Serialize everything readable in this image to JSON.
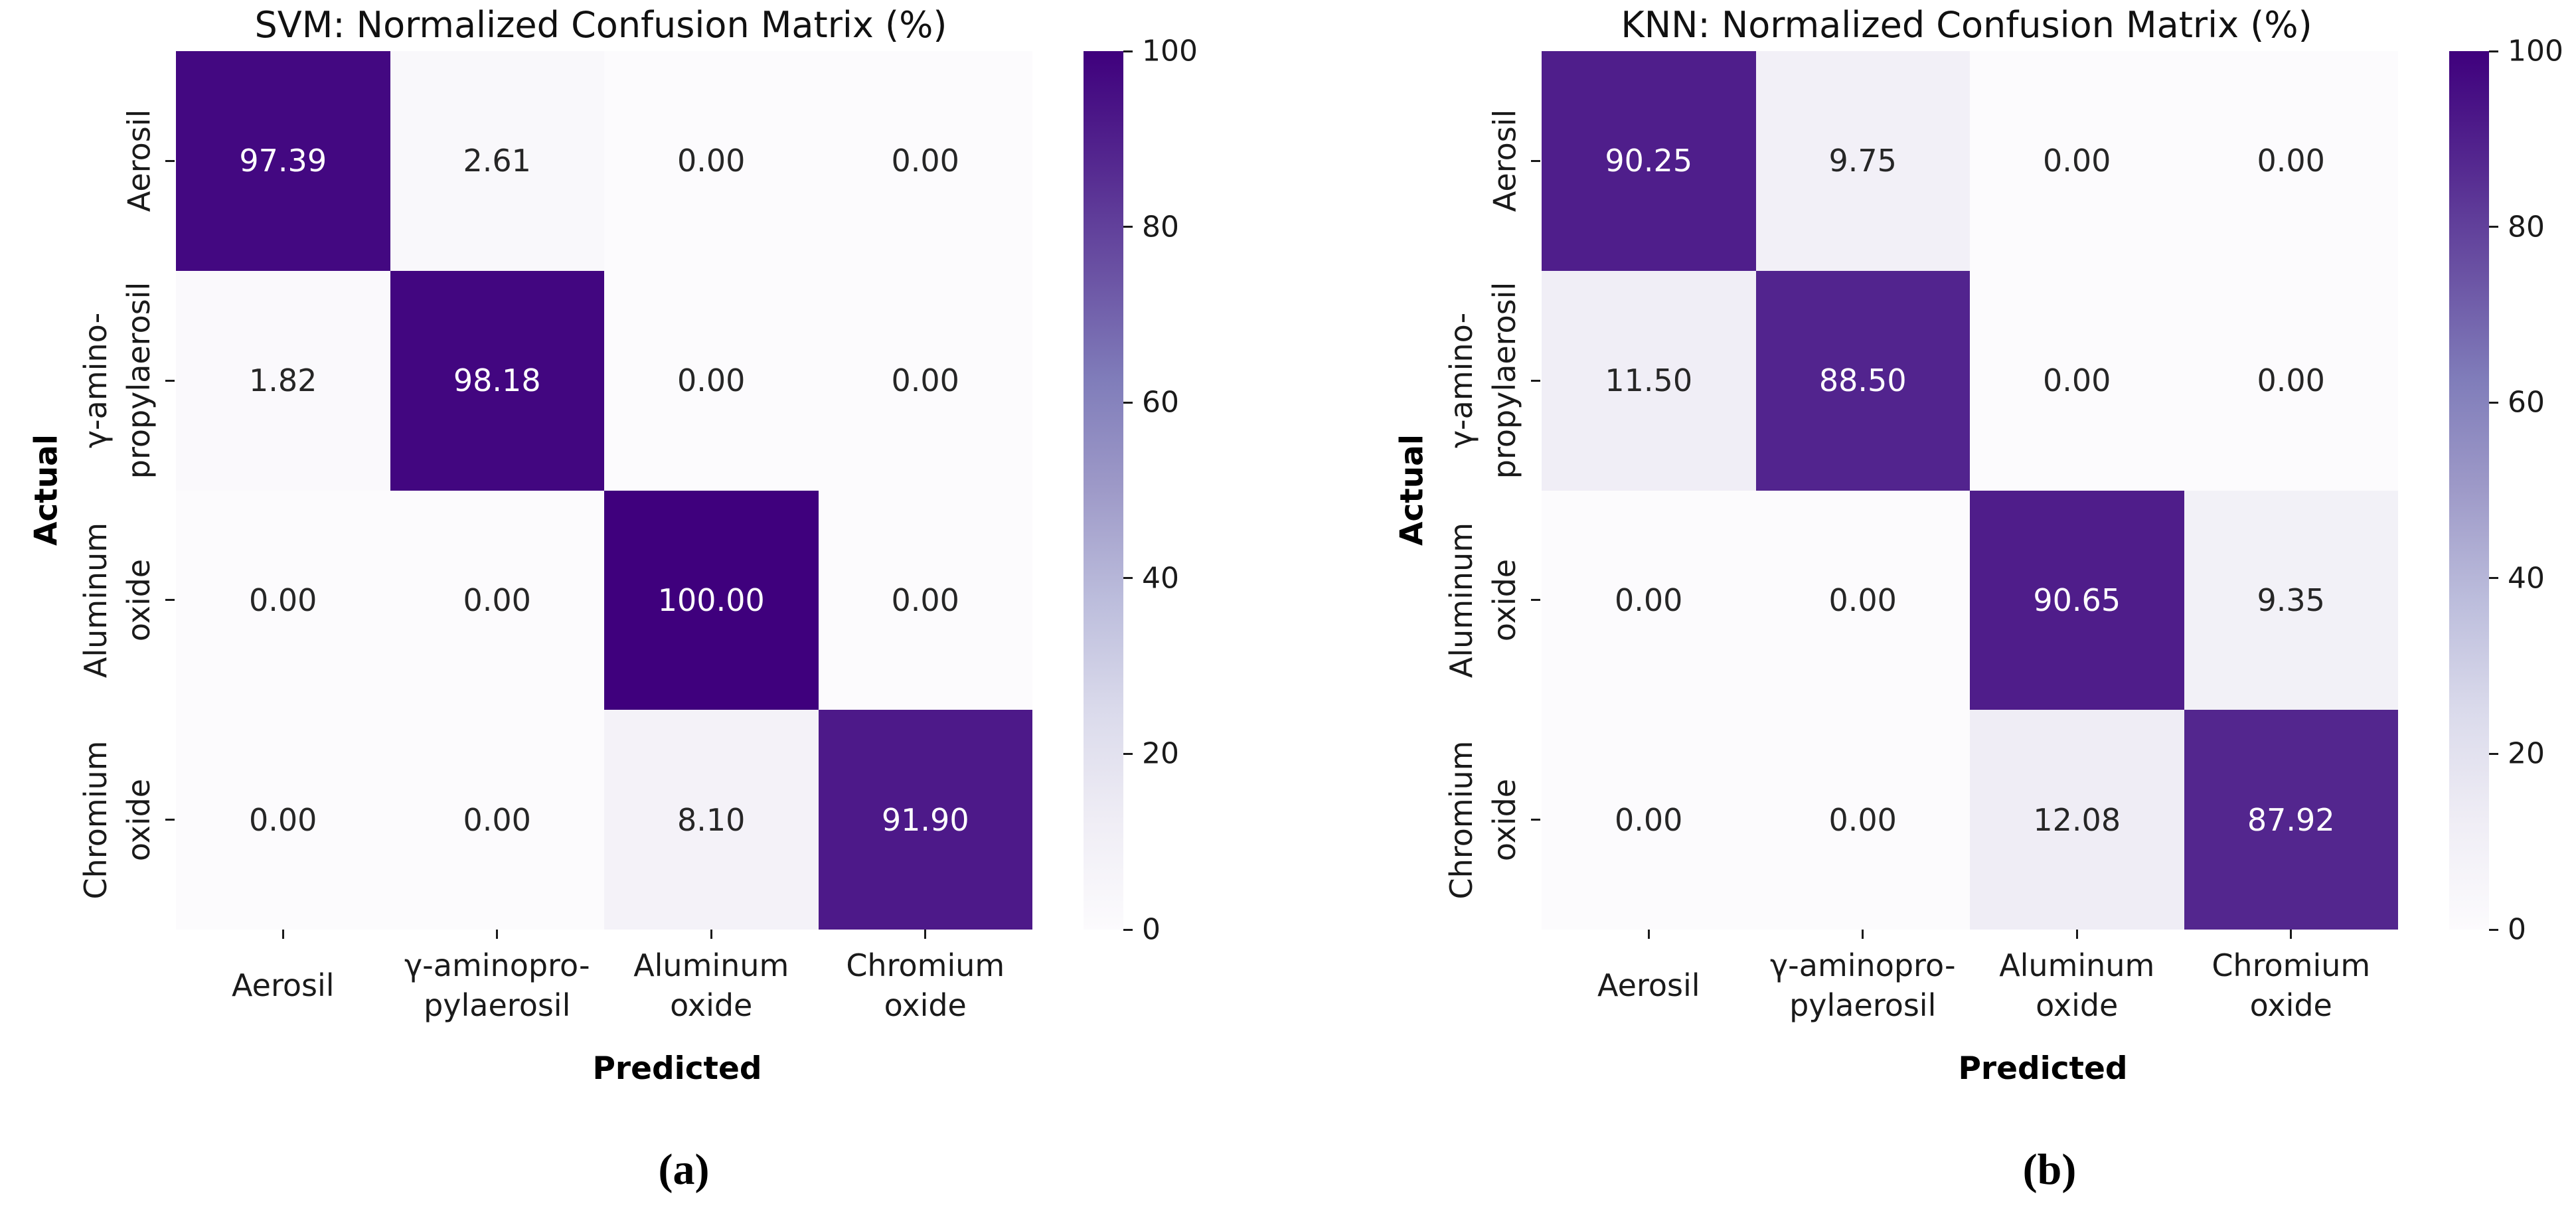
{
  "style": {
    "background": "#ffffff",
    "tick_color": "#1a1a1a",
    "annot_on_dark": "#ffffff",
    "annot_on_light": "#262626",
    "colormap_stops": [
      {
        "v": 0,
        "c": "#fcfbfd"
      },
      {
        "v": 12.5,
        "c": "#efedf5"
      },
      {
        "v": 25,
        "c": "#dadaeb"
      },
      {
        "v": 37.5,
        "c": "#bcbddc"
      },
      {
        "v": 50,
        "c": "#9e9ac8"
      },
      {
        "v": 62.5,
        "c": "#807dba"
      },
      {
        "v": 75,
        "c": "#6a51a3"
      },
      {
        "v": 87.5,
        "c": "#54278f"
      },
      {
        "v": 100,
        "c": "#3f007d"
      }
    ]
  },
  "axes": {
    "x_tick_lines": [
      [
        "Aerosil"
      ],
      [
        "γ-aminopro-",
        "pylaerosil"
      ],
      [
        "Aluminum",
        "oxide"
      ],
      [
        "Chromium",
        "oxide"
      ]
    ],
    "y_tick_lines": [
      [
        "Aerosil"
      ],
      [
        "γ-amino-",
        "propylaerosil"
      ],
      [
        "Aluminum",
        "oxide"
      ],
      [
        "Chromium",
        "oxide"
      ]
    ]
  },
  "colorbar": {
    "min": 0,
    "max": 100,
    "ticks": [
      100,
      80,
      60,
      40,
      20,
      0
    ]
  },
  "chart_data": [
    {
      "type": "heatmap",
      "title": "SVM: Normalized Confusion Matrix (%)",
      "xlabel": "Predicted",
      "ylabel": "Actual",
      "caption": "(a)",
      "x_categories": [
        "Aerosil",
        "γ-aminopropylaerosil",
        "Aluminum oxide",
        "Chromium oxide"
      ],
      "y_categories": [
        "Aerosil",
        "γ-aminopropylaerosil",
        "Aluminum oxide",
        "Chromium oxide"
      ],
      "values": [
        [
          97.39,
          2.61,
          0.0,
          0.0
        ],
        [
          1.82,
          98.18,
          0.0,
          0.0
        ],
        [
          0.0,
          0.0,
          100.0,
          0.0
        ],
        [
          0.0,
          0.0,
          8.1,
          91.9
        ]
      ],
      "vmin": 0,
      "vmax": 100,
      "colormap": "Purples",
      "legend_position": "right-colorbar",
      "grid": false
    },
    {
      "type": "heatmap",
      "title": "KNN: Normalized Confusion Matrix (%)",
      "xlabel": "Predicted",
      "ylabel": "Actual",
      "caption": "(b)",
      "x_categories": [
        "Aerosil",
        "γ-aminopropylaerosil",
        "Aluminum oxide",
        "Chromium oxide"
      ],
      "y_categories": [
        "Aerosil",
        "γ-aminopropylaerosil",
        "Aluminum oxide",
        "Chromium oxide"
      ],
      "values": [
        [
          90.25,
          9.75,
          0.0,
          0.0
        ],
        [
          11.5,
          88.5,
          0.0,
          0.0
        ],
        [
          0.0,
          0.0,
          90.65,
          9.35
        ],
        [
          0.0,
          0.0,
          12.08,
          87.92
        ]
      ],
      "vmin": 0,
      "vmax": 100,
      "colormap": "Purples",
      "legend_position": "right-colorbar",
      "grid": false
    }
  ]
}
